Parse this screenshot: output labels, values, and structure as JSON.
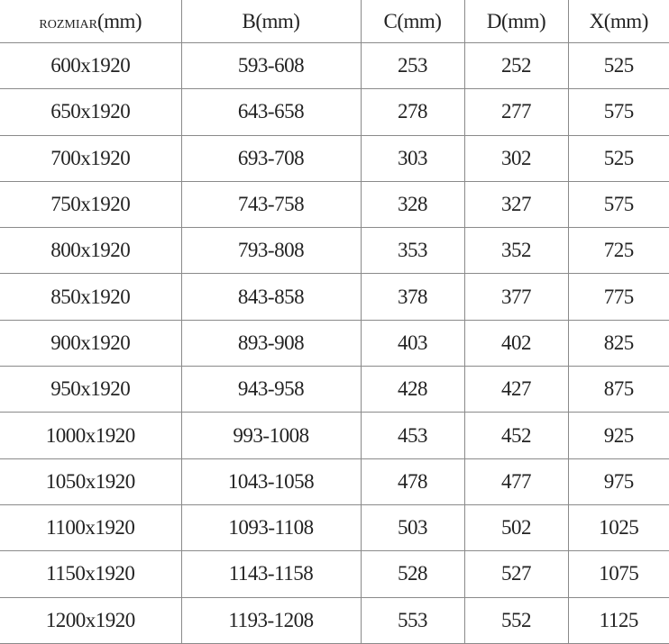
{
  "table": {
    "headers": [
      {
        "prefix": "ROZMIAR",
        "unit": "(mm)"
      },
      {
        "prefix": "B",
        "unit": "(mm)"
      },
      {
        "prefix": "C",
        "unit": "(mm)"
      },
      {
        "prefix": "D",
        "unit": "(mm)"
      },
      {
        "prefix": "X",
        "unit": "(mm)"
      }
    ],
    "rows": [
      [
        "600x1920",
        "593-608",
        "253",
        "252",
        "525"
      ],
      [
        "650x1920",
        "643-658",
        "278",
        "277",
        "575"
      ],
      [
        "700x1920",
        "693-708",
        "303",
        "302",
        "525"
      ],
      [
        "750x1920",
        "743-758",
        "328",
        "327",
        "575"
      ],
      [
        "800x1920",
        "793-808",
        "353",
        "352",
        "725"
      ],
      [
        "850x1920",
        "843-858",
        "378",
        "377",
        "775"
      ],
      [
        "900x1920",
        "893-908",
        "403",
        "402",
        "825"
      ],
      [
        "950x1920",
        "943-958",
        "428",
        "427",
        "875"
      ],
      [
        "1000x1920",
        "993-1008",
        "453",
        "452",
        "925"
      ],
      [
        "1050x1920",
        "1043-1058",
        "478",
        "477",
        "975"
      ],
      [
        "1100x1920",
        "1093-1108",
        "503",
        "502",
        "1025"
      ],
      [
        "1150x1920",
        "1143-1158",
        "528",
        "527",
        "1075"
      ],
      [
        "1200x1920",
        "1193-1208",
        "553",
        "552",
        "1125"
      ]
    ]
  }
}
